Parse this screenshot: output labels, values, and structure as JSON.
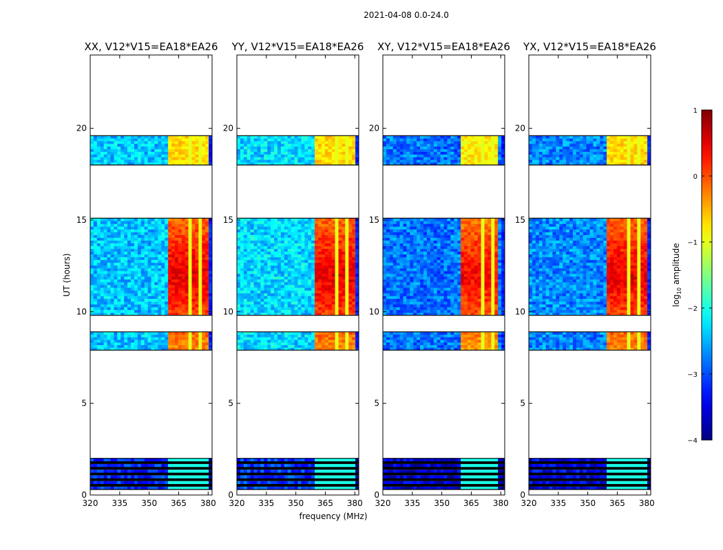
{
  "chart_data": {
    "type": "heatmap",
    "suptitle": "2021-04-08 0.0-24.0",
    "xlabel": "frequency (MHz)",
    "ylabel": "UT (hours)",
    "xlim": [
      320,
      382
    ],
    "ylim": [
      0,
      24
    ],
    "xticks": [
      320,
      335,
      350,
      365,
      380
    ],
    "yticks": [
      0,
      5,
      10,
      15,
      20
    ],
    "colorbar": {
      "label": "log10 amplitude",
      "label_base": "log",
      "label_sub": "10",
      "label_rest": " amplitude",
      "min": -4,
      "max": 1,
      "ticks": [
        "1",
        "0",
        "−1",
        "−2",
        "−3",
        "−4"
      ],
      "tick_values": [
        1,
        0,
        -1,
        -2,
        -3,
        -4
      ],
      "colormap": "jet"
    },
    "ut_blocks_hours": [
      {
        "start": 0.3,
        "end": 2.0,
        "masked_rows": true
      },
      {
        "start": 7.9,
        "end": 8.9,
        "masked_rows": false
      },
      {
        "start": 9.8,
        "end": 15.1,
        "masked_rows": false
      },
      {
        "start": 18.0,
        "end": 19.6,
        "masked_rows": false
      }
    ],
    "panels": [
      {
        "title": "XX, V12*V15=EA18*EA26",
        "strong_band_mhz": [
          359,
          380
        ],
        "peak_log10": 0.6,
        "background_log10": -2.4
      },
      {
        "title": "YY, V12*V15=EA18*EA26",
        "strong_band_mhz": [
          359,
          380
        ],
        "peak_log10": 0.6,
        "background_log10": -2.3
      },
      {
        "title": "XY, V12*V15=EA18*EA26",
        "strong_band_mhz": [
          359,
          379
        ],
        "peak_log10": 0.5,
        "background_log10": -2.8
      },
      {
        "title": "YX, V12*V15=EA18*EA26",
        "strong_band_mhz": [
          359,
          380
        ],
        "peak_log10": 0.6,
        "background_log10": -2.7
      }
    ]
  }
}
